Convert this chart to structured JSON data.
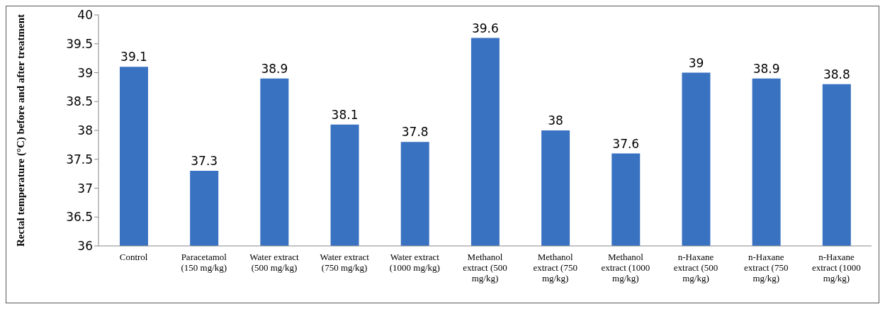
{
  "chart_data": {
    "type": "bar",
    "ylabel": "Rectal temperature (°C) before and after treatment",
    "categories": [
      "Control",
      "Paracetamol (150 mg/kg)",
      "Water extract (500 mg/kg)",
      "Water extract (750 mg/kg)",
      "Water extract (1000 mg/kg)",
      "Methanol extract (500 mg/kg)",
      "Methanol extract (750 mg/kg)",
      "Methanol extract (1000 mg/kg)",
      "n-Haxane extract (500 mg/kg)",
      "n-Haxane extract (750 mg/kg)",
      "n-Haxane extract (1000 mg/kg)"
    ],
    "values": [
      39.1,
      37.3,
      38.9,
      38.1,
      37.8,
      39.6,
      38,
      37.6,
      39,
      38.9,
      38.8
    ],
    "color": "#3a72c2",
    "ylim": [
      36,
      40
    ],
    "yticks": [
      36,
      36.5,
      37,
      37.5,
      38,
      38.5,
      39,
      39.5,
      40
    ],
    "grid": false,
    "data_labels": true,
    "legend": false
  }
}
